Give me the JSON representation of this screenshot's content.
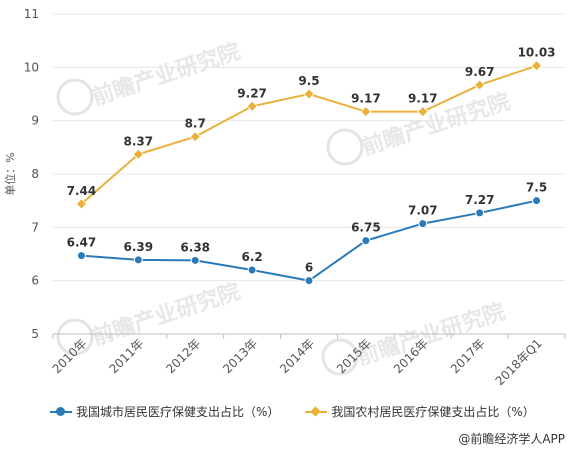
{
  "chart_data": {
    "type": "line",
    "ylabel": "单位：%",
    "ylim": [
      5,
      11
    ],
    "yticks": [
      5,
      6,
      7,
      8,
      9,
      10,
      11
    ],
    "grid": "horizontal",
    "legend_position": "bottom",
    "categories": [
      "2010年",
      "2011年",
      "2012年",
      "2013年",
      "2014年",
      "2015年",
      "2016年",
      "2017年",
      "2018年Q1"
    ],
    "series": [
      {
        "name": "我国城市居民医疗保健支出占比（%）",
        "color": "#2a7ab8",
        "marker": "circle",
        "values": [
          6.47,
          6.39,
          6.38,
          6.2,
          6,
          6.75,
          7.07,
          7.27,
          7.5
        ],
        "labels": [
          "6.47",
          "6.39",
          "6.38",
          "6.2",
          "6",
          "6.75",
          "7.07",
          "7.27",
          "7.5"
        ]
      },
      {
        "name": "我国农村居民医疗保健支出占比（%）",
        "color": "#e8b23a",
        "marker": "diamond",
        "values": [
          7.44,
          8.37,
          8.7,
          9.27,
          9.5,
          9.17,
          9.17,
          9.67,
          10.03
        ],
        "labels": [
          "7.44",
          "8.37",
          "8.7",
          "9.27",
          "9.5",
          "9.17",
          "9.17",
          "9.67",
          "10.03"
        ]
      }
    ]
  },
  "source": "@前瞻经济学人APP",
  "watermark": "前瞻产业研究院"
}
